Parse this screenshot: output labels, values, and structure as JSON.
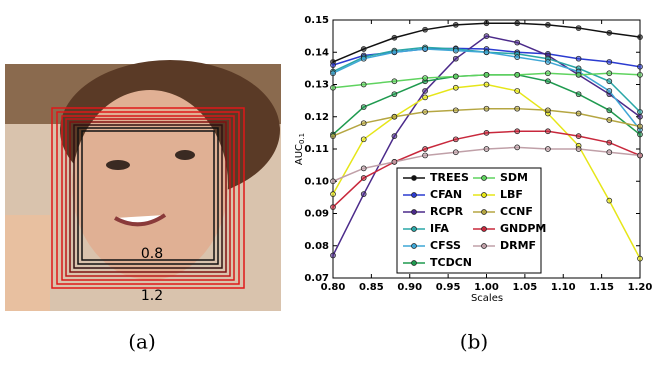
{
  "panels": {
    "a": {
      "caption": "(a)",
      "box_labels": [
        "0.8",
        "1.2"
      ]
    },
    "b": {
      "caption": "(b)"
    }
  },
  "chart_data": {
    "type": "line",
    "x_label": "Scales",
    "y_label": "AUC",
    "y_label_subscript": "0.1",
    "x": [
      0.8,
      0.84,
      0.88,
      0.92,
      0.96,
      1.0,
      1.04,
      1.08,
      1.12,
      1.16,
      1.2
    ],
    "xlim": [
      0.8,
      1.2
    ],
    "xticks": [
      {
        "value": 0.8,
        "label": "0.80"
      },
      {
        "value": 0.85,
        "label": "0.85"
      },
      {
        "value": 0.9,
        "label": "0.90"
      },
      {
        "value": 0.95,
        "label": "0.95"
      },
      {
        "value": 1.0,
        "label": "1.00"
      },
      {
        "value": 1.05,
        "label": "1.05"
      },
      {
        "value": 1.1,
        "label": "1.10"
      },
      {
        "value": 1.15,
        "label": "1.15"
      },
      {
        "value": 1.2,
        "label": "1.20"
      }
    ],
    "ylim": [
      0.07,
      0.15
    ],
    "yticks": [
      {
        "value": 0.07,
        "label": "0.07"
      },
      {
        "value": 0.08,
        "label": "0.08"
      },
      {
        "value": 0.09,
        "label": "0.09"
      },
      {
        "value": 0.1,
        "label": "0.10"
      },
      {
        "value": 0.11,
        "label": "0.11"
      },
      {
        "value": 0.12,
        "label": "0.12"
      },
      {
        "value": 0.13,
        "label": "0.13"
      },
      {
        "value": 0.14,
        "label": "0.14"
      },
      {
        "value": 0.15,
        "label": "0.15"
      }
    ],
    "series": [
      {
        "name": "TREES",
        "color": "#111111",
        "values": [
          0.137,
          0.141,
          0.1445,
          0.147,
          0.1485,
          0.149,
          0.149,
          0.1485,
          0.1475,
          0.146,
          0.1447
        ]
      },
      {
        "name": "CFAN",
        "color": "#2b3bd0",
        "values": [
          0.136,
          0.139,
          0.14,
          0.141,
          0.1412,
          0.141,
          0.14,
          0.1395,
          0.138,
          0.137,
          0.1355
        ]
      },
      {
        "name": "RCPR",
        "color": "#4b2a8a",
        "values": [
          0.077,
          0.096,
          0.114,
          0.128,
          0.138,
          0.145,
          0.143,
          0.139,
          0.133,
          0.127,
          0.12
        ]
      },
      {
        "name": "IFA",
        "color": "#2aa7a7",
        "values": [
          0.134,
          0.1385,
          0.1405,
          0.1415,
          0.141,
          0.14,
          0.1395,
          0.138,
          0.135,
          0.131,
          0.1215
        ]
      },
      {
        "name": "CFSS",
        "color": "#3fa7d6",
        "values": [
          0.1335,
          0.138,
          0.14,
          0.141,
          0.1405,
          0.14,
          0.1385,
          0.137,
          0.134,
          0.128,
          0.116
        ]
      },
      {
        "name": "TCDCN",
        "color": "#1f9a4f",
        "values": [
          0.1145,
          0.123,
          0.127,
          0.131,
          0.1325,
          0.133,
          0.133,
          0.131,
          0.127,
          0.122,
          0.1145
        ]
      },
      {
        "name": "SDM",
        "color": "#5fd35f",
        "values": [
          0.129,
          0.13,
          0.131,
          0.132,
          0.1325,
          0.133,
          0.133,
          0.1335,
          0.133,
          0.1335,
          0.133
        ]
      },
      {
        "name": "LBF",
        "color": "#e6e619",
        "values": [
          0.096,
          0.113,
          0.12,
          0.126,
          0.129,
          0.13,
          0.128,
          0.121,
          0.111,
          0.094,
          0.076
        ]
      },
      {
        "name": "CCNF",
        "color": "#b5a642",
        "values": [
          0.114,
          0.118,
          0.12,
          0.1215,
          0.122,
          0.1225,
          0.1225,
          0.122,
          0.121,
          0.119,
          0.117
        ]
      },
      {
        "name": "GNDPM",
        "color": "#c8283c",
        "values": [
          0.092,
          0.101,
          0.106,
          0.11,
          0.113,
          0.115,
          0.1155,
          0.1155,
          0.114,
          0.112,
          0.108
        ]
      },
      {
        "name": "DRMF",
        "color": "#c0a0a8",
        "values": [
          0.1,
          0.104,
          0.106,
          0.108,
          0.109,
          0.11,
          0.1105,
          0.11,
          0.11,
          0.109,
          0.108
        ]
      }
    ]
  }
}
